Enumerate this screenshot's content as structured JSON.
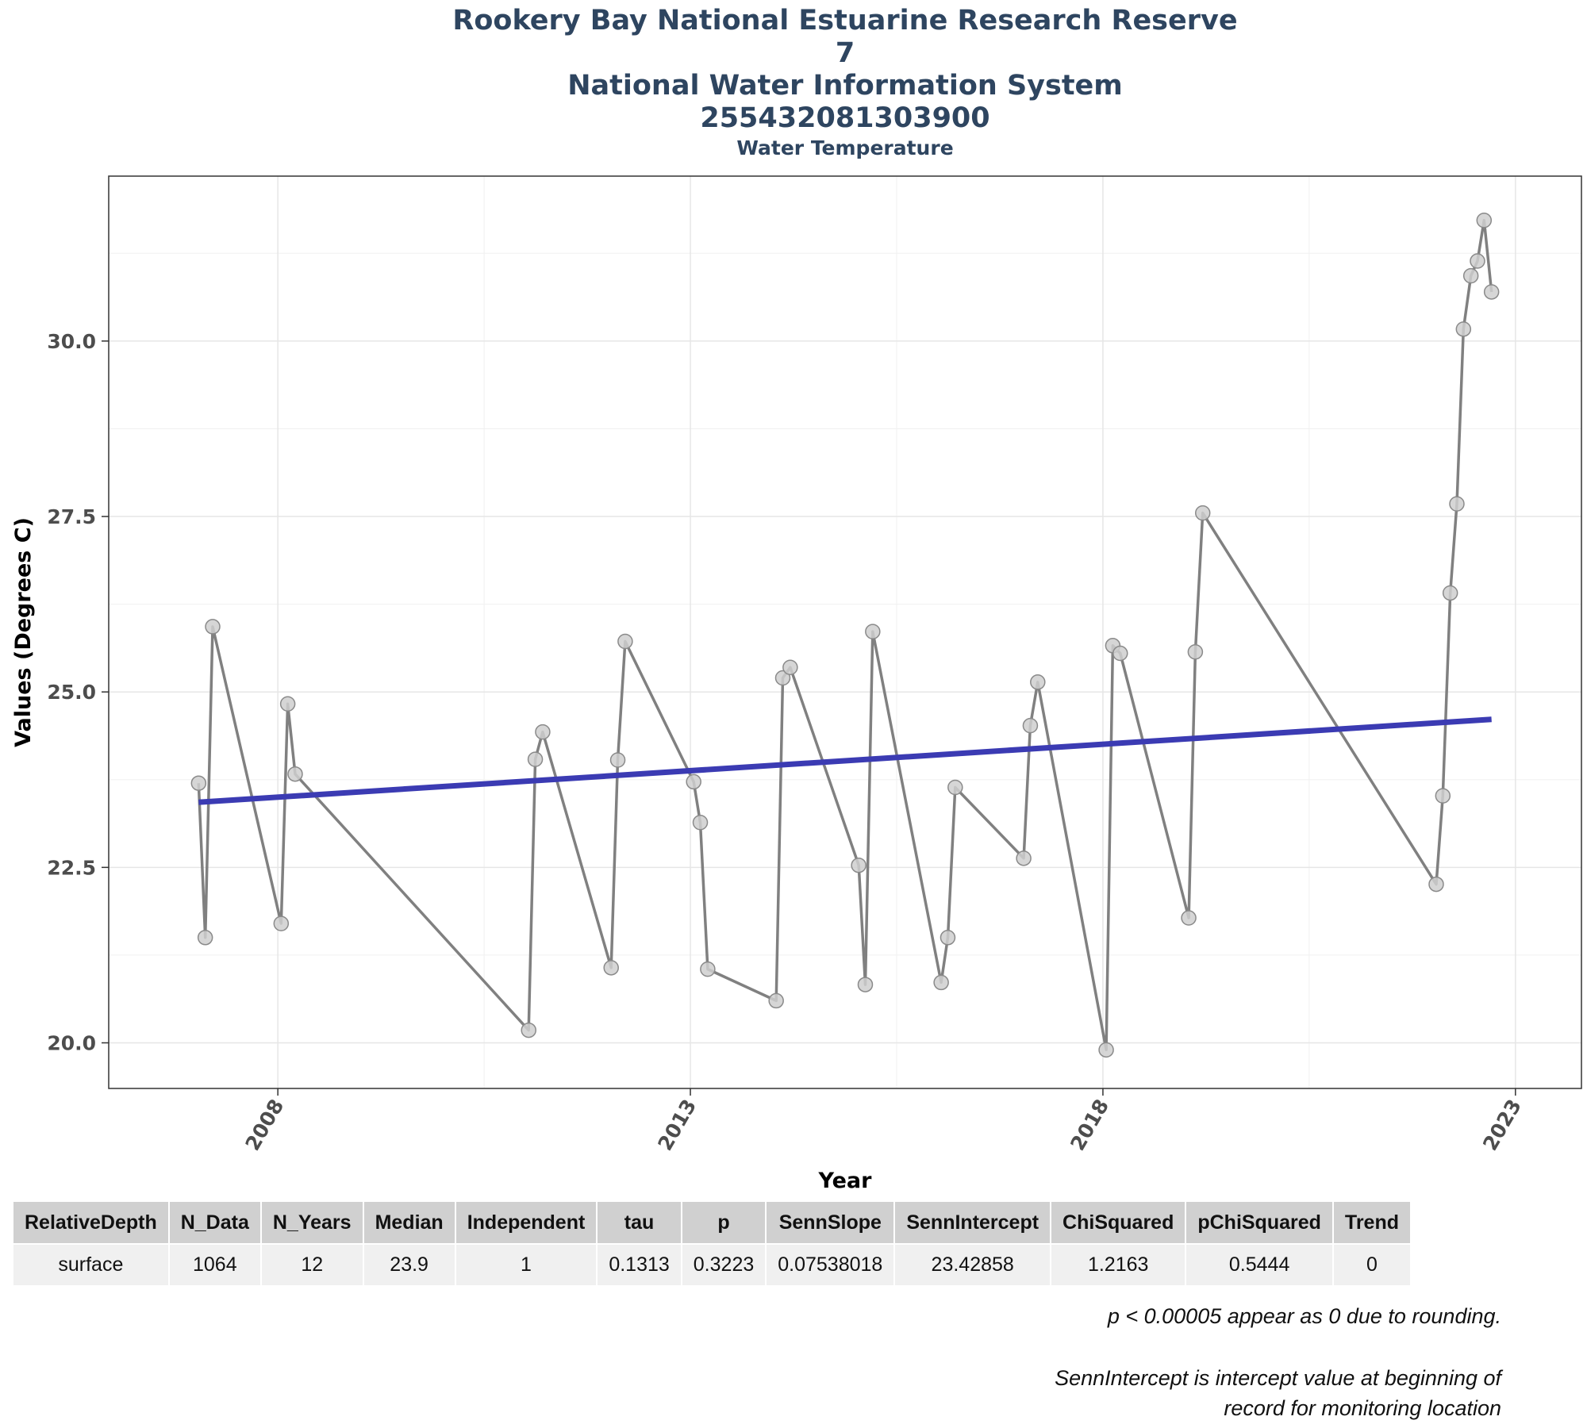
{
  "chart_data": {
    "type": "line",
    "titles": [
      "Rookery Bay National Estuarine Research Reserve",
      "7",
      "National Water Information System",
      "255432081303900"
    ],
    "subtitle": "Water Temperature",
    "xlabel": "Year",
    "ylabel": "Values (Degrees C)",
    "xlim": [
      2005.95,
      2023.8
    ],
    "ylim": [
      19.35,
      32.35
    ],
    "x_ticks": [
      2008,
      2013,
      2018,
      2023
    ],
    "y_ticks": [
      20.0,
      22.5,
      25.0,
      27.5,
      30.0
    ],
    "y_tick_labels": [
      "20.0",
      "22.5",
      "25.0",
      "27.5",
      "30.0"
    ],
    "series": [
      {
        "name": "Water Temperature",
        "color": "#808080",
        "x": [
          2007.04,
          2007.12,
          2007.21,
          2008.04,
          2008.12,
          2008.21,
          2011.04,
          2011.12,
          2011.21,
          2012.04,
          2012.12,
          2012.21,
          2013.04,
          2013.12,
          2013.21,
          2014.04,
          2014.12,
          2014.21,
          2015.04,
          2015.12,
          2015.21,
          2016.04,
          2016.12,
          2016.21,
          2017.04,
          2017.12,
          2017.21,
          2018.04,
          2018.12,
          2018.21,
          2019.04,
          2019.12,
          2019.21,
          2022.04,
          2022.12,
          2022.21,
          2022.29,
          2022.37,
          2022.46,
          2022.54,
          2022.62,
          2022.71
        ],
        "values": [
          23.7,
          21.5,
          25.93,
          21.7,
          24.83,
          23.83,
          20.18,
          24.04,
          24.43,
          21.07,
          24.03,
          25.72,
          23.72,
          23.14,
          21.05,
          20.6,
          25.2,
          25.35,
          22.53,
          20.83,
          25.86,
          20.86,
          21.5,
          23.64,
          22.63,
          24.52,
          25.14,
          19.9,
          25.66,
          25.55,
          21.78,
          25.57,
          27.55,
          22.26,
          23.52,
          26.41,
          27.68,
          30.17,
          30.93,
          31.14,
          31.72,
          30.7
        ]
      }
    ],
    "trend_line": {
      "name": "Sen slope trend",
      "color": "#3b3bb3",
      "x": [
        2007.04,
        2022.71
      ],
      "values": [
        23.42858,
        24.6097
      ]
    }
  },
  "table": {
    "headers": [
      "RelativeDepth",
      "N_Data",
      "N_Years",
      "Median",
      "Independent",
      "tau",
      "p",
      "SennSlope",
      "SennIntercept",
      "ChiSquared",
      "pChiSquared",
      "Trend"
    ],
    "row": [
      "surface",
      "1064",
      "12",
      "23.9",
      "1",
      "0.1313",
      "0.3223",
      "0.07538018",
      "23.42858",
      "1.2163",
      "0.5444",
      "0"
    ]
  },
  "notes": {
    "rounding": "p < 0.00005 appear as 0 due to rounding.",
    "intercept_line1": "SennIntercept is intercept value at beginning of",
    "intercept_line2": "record for monitoring location"
  }
}
